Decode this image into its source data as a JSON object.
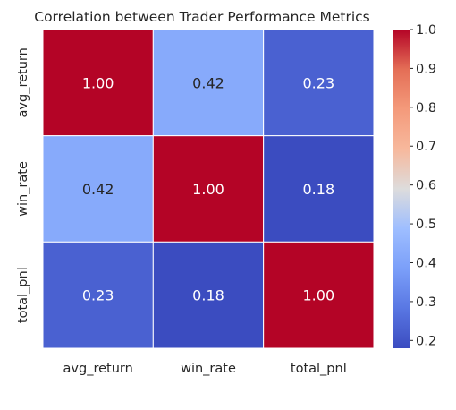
{
  "chart_data": {
    "type": "heatmap",
    "title": "Correlation between Trader Performance Metrics",
    "xlabels": [
      "avg_return",
      "win_rate",
      "total_pnl"
    ],
    "ylabels": [
      "avg_return",
      "win_rate",
      "total_pnl"
    ],
    "values": [
      [
        1.0,
        0.42,
        0.23
      ],
      [
        0.42,
        1.0,
        0.18
      ],
      [
        0.23,
        0.18,
        1.0
      ]
    ],
    "annotations": [
      [
        "1.00",
        "0.42",
        "0.23"
      ],
      [
        "0.42",
        "1.00",
        "0.18"
      ],
      [
        "0.23",
        "0.18",
        "1.00"
      ]
    ],
    "colormap": "coolwarm",
    "vmin": 0.18,
    "vmax": 1.0,
    "colorbar_ticks": [
      "0.2",
      "0.3",
      "0.4",
      "0.5",
      "0.6",
      "0.7",
      "0.8",
      "0.9",
      "1.0"
    ],
    "colorbar_tick_values": [
      0.2,
      0.3,
      0.4,
      0.5,
      0.6,
      0.7,
      0.8,
      0.9,
      1.0
    ],
    "cell_text_colors": {
      "dark": "#ffffff",
      "light": "#262626"
    }
  }
}
